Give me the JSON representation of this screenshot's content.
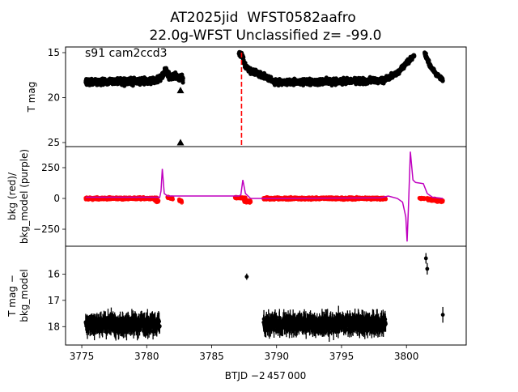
{
  "chart_data": {
    "type": "scatter",
    "title_line1": "AT2025jid  WFST0582aafro",
    "title_line2": "22.0g-WFST Unclassified z= -99.0",
    "annotation": "s91 cam2ccd3",
    "xlabel": "BTJD −2 457 000",
    "xlim": [
      3773.75,
      3804.6
    ],
    "xticks": [
      3775,
      3780,
      3785,
      3790,
      3795,
      3800
    ],
    "panels": [
      {
        "name": "lightcurve",
        "ylabel": [
          "T mag"
        ],
        "ylim": [
          25.45,
          14.37
        ],
        "inverted": true,
        "yticks": [
          15,
          20,
          25
        ],
        "marker_color": "#000000",
        "segments": [
          {
            "x": [
              3775.3,
              3777,
              3779,
              3780.8,
              3781.2,
              3781.4,
              3781.8,
              3782.2,
              3782.8
            ],
            "y": [
              18.3,
              18.2,
              18.2,
              18.1,
              17.6,
              16.9,
              17.7,
              17.6,
              18.0
            ],
            "scatter": 0.35
          },
          {
            "x": [
              3787.1,
              3787.4,
              3787.6,
              3788,
              3789,
              3790,
              3795,
              3798.3
            ],
            "y": [
              15.0,
              15.4,
              16.6,
              17.0,
              17.6,
              18.3,
              18.2,
              18.1
            ],
            "scatter": 0.3
          },
          {
            "x": [
              3798.3,
              3799.2,
              3800,
              3800.6
            ],
            "y": [
              18.0,
              17.4,
              16.2,
              15.3
            ],
            "scatter": 0.25
          },
          {
            "x": [
              3801.4,
              3801.8,
              3802.3,
              3802.8
            ],
            "y": [
              15.0,
              16.4,
              17.4,
              18.0
            ],
            "scatter": 0.2
          }
        ],
        "upper_limits": {
          "x": [
            3782.6,
            3782.6
          ],
          "y": [
            19.2,
            25.0
          ]
        },
        "vline": {
          "x": 3787.3,
          "color": "#ff0000",
          "style": "dashed"
        }
      },
      {
        "name": "background",
        "ylabel": [
          "bkg (red)/",
          "bkg_model (purple)"
        ],
        "ylim": [
          -388,
          421
        ],
        "yticks": [
          -250,
          0,
          250
        ],
        "bkg_color": "#ff0000",
        "model_color": "#bf00bf",
        "bkg_segments": [
          {
            "x": [
              3775.3,
              3780.8
            ],
            "y": [
              0,
              0
            ],
            "scatter": 8
          },
          {
            "x": [
              3780.6,
              3780.9
            ],
            "y": [
              -10,
              -25
            ],
            "scatter": 10
          },
          {
            "x": [
              3781.6,
              3782.0
            ],
            "y": [
              10,
              0
            ],
            "scatter": 8
          },
          {
            "x": [
              3782.5,
              3782.7
            ],
            "y": [
              -10,
              -20
            ],
            "scatter": 12
          },
          {
            "x": [
              3786.8,
              3787.6
            ],
            "y": [
              5,
              5
            ],
            "scatter": 6
          },
          {
            "x": [
              3787.5,
              3788.0
            ],
            "y": [
              -20,
              -25
            ],
            "scatter": 10
          },
          {
            "x": [
              3789.0,
              3798.4
            ],
            "y": [
              0,
              0
            ],
            "scatter": 8
          },
          {
            "x": [
              3801.0,
              3801.4
            ],
            "y": [
              0,
              0
            ],
            "scatter": 5
          },
          {
            "x": [
              3801.6,
              3802.8
            ],
            "y": [
              -5,
              -20
            ],
            "scatter": 10
          }
        ],
        "model": {
          "x": [
            3775.3,
            3780.9,
            3781.0,
            3781.1,
            3781.2,
            3781.35,
            3781.6,
            3787.1,
            3787.25,
            3787.4,
            3787.6,
            3788.0,
            3789.0,
            3798.0,
            3798.6,
            3799.3,
            3799.7,
            3799.95,
            3800.05,
            3800.15,
            3800.3,
            3800.5,
            3800.7,
            3801.3,
            3801.6,
            3802.0,
            3802.8
          ],
          "y": [
            10,
            10,
            8,
            60,
            240,
            40,
            20,
            20,
            30,
            150,
            40,
            0,
            0,
            5,
            20,
            0,
            -30,
            -150,
            -350,
            -80,
            380,
            150,
            130,
            120,
            40,
            10,
            0
          ]
        }
      },
      {
        "name": "difference",
        "ylabel": [
          "T mag −",
          "bkg_model"
        ],
        "ylim": [
          18.7,
          14.94
        ],
        "inverted": true,
        "yticks": [
          16,
          17,
          18
        ],
        "marker_color": "#000000",
        "segments": [
          {
            "x": [
              3775.3,
              3781.0
            ],
            "y": [
              17.9,
              17.9
            ],
            "scatter": 0.2,
            "err": 0.3
          },
          {
            "x": [
              3789.0,
              3798.4
            ],
            "y": [
              17.9,
              17.9
            ],
            "scatter": 0.2,
            "err": 0.3
          }
        ],
        "points": {
          "x": [
            3787.7,
            3801.5,
            3801.6,
            3802.8
          ],
          "y": [
            16.1,
            15.4,
            15.8,
            17.55
          ],
          "err": [
            0.12,
            0.2,
            0.22,
            0.3
          ]
        }
      }
    ]
  }
}
